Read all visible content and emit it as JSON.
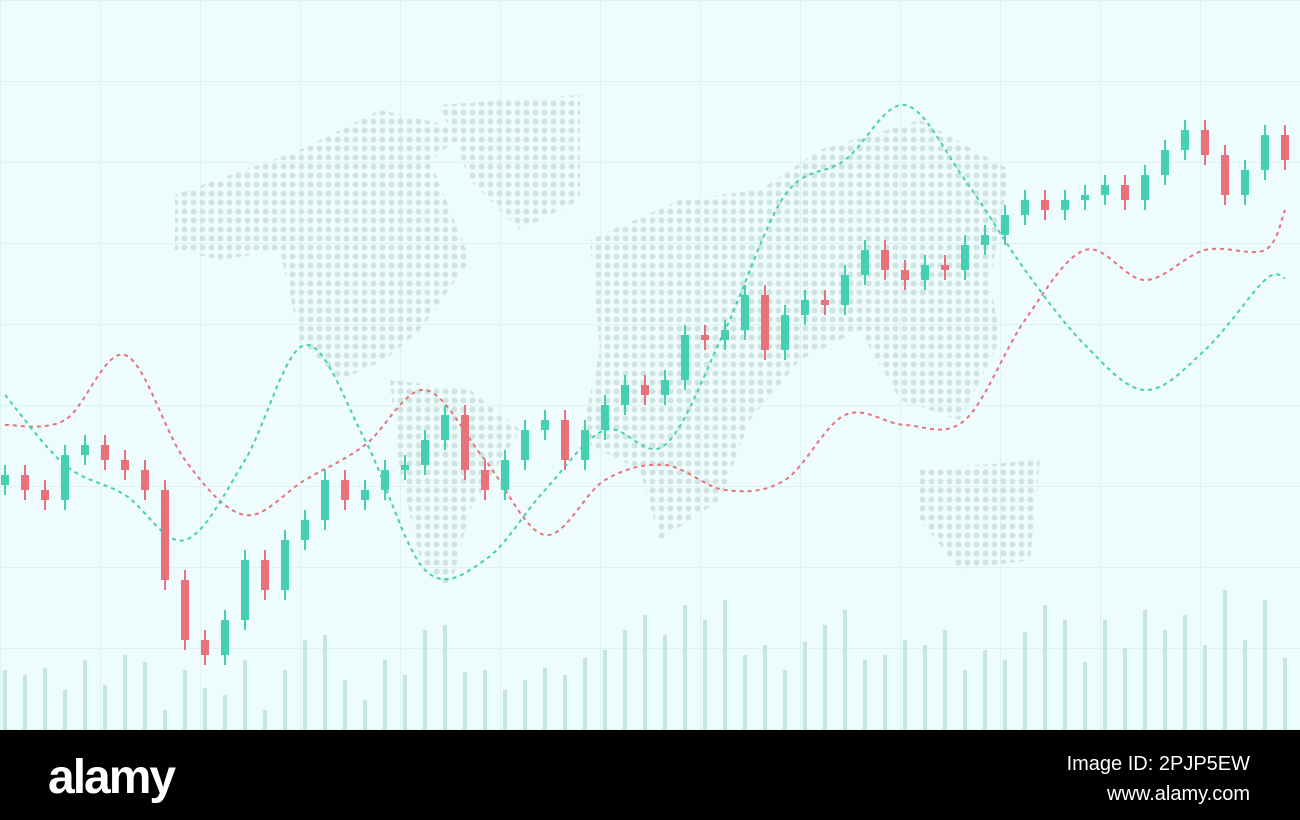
{
  "chart_data": {
    "type": "candlestick",
    "up_color": "#45d0b3",
    "down_color": "#e8727c",
    "volume_color": "#c4e6df",
    "ylim": [
      0,
      730
    ],
    "open": [
      245,
      255,
      240,
      230,
      275,
      285,
      270,
      260,
      240,
      150,
      90,
      75,
      110,
      170,
      140,
      190,
      210,
      250,
      230,
      240,
      260,
      265,
      290,
      315,
      260,
      240,
      270,
      300,
      310,
      270,
      300,
      325,
      345,
      335,
      350,
      395,
      390,
      400,
      435,
      380,
      415,
      430,
      425,
      455,
      480,
      460,
      450,
      465,
      460,
      485,
      495,
      515,
      530,
      520,
      530,
      535,
      545,
      530,
      555,
      580,
      600,
      575,
      535,
      560,
      595
    ],
    "high": [
      265,
      265,
      250,
      285,
      295,
      295,
      280,
      270,
      250,
      160,
      100,
      120,
      180,
      180,
      200,
      220,
      260,
      260,
      250,
      270,
      275,
      300,
      325,
      325,
      270,
      280,
      310,
      320,
      320,
      310,
      335,
      355,
      355,
      360,
      405,
      405,
      410,
      445,
      445,
      425,
      440,
      440,
      465,
      490,
      490,
      470,
      475,
      475,
      495,
      505,
      525,
      540,
      540,
      540,
      545,
      555,
      555,
      565,
      590,
      610,
      610,
      585,
      570,
      605,
      605
    ],
    "low": [
      235,
      230,
      220,
      220,
      265,
      260,
      250,
      230,
      140,
      80,
      65,
      65,
      100,
      130,
      130,
      180,
      200,
      220,
      220,
      230,
      250,
      255,
      280,
      250,
      230,
      230,
      260,
      290,
      260,
      260,
      290,
      315,
      325,
      325,
      340,
      380,
      380,
      390,
      370,
      370,
      405,
      415,
      415,
      445,
      450,
      440,
      440,
      450,
      450,
      475,
      485,
      505,
      510,
      510,
      520,
      525,
      520,
      520,
      545,
      570,
      565,
      525,
      525,
      550,
      560
    ],
    "close": [
      255,
      240,
      230,
      275,
      285,
      270,
      260,
      240,
      150,
      90,
      75,
      110,
      170,
      140,
      190,
      210,
      250,
      230,
      240,
      260,
      265,
      290,
      315,
      260,
      240,
      270,
      300,
      310,
      270,
      300,
      325,
      345,
      335,
      350,
      395,
      390,
      400,
      435,
      380,
      415,
      430,
      425,
      455,
      480,
      460,
      450,
      465,
      460,
      485,
      495,
      515,
      530,
      520,
      530,
      535,
      545,
      530,
      555,
      580,
      600,
      575,
      535,
      560,
      595,
      570
    ],
    "volume": [
      60,
      55,
      62,
      40,
      70,
      45,
      75,
      68,
      20,
      60,
      42,
      35,
      70,
      20,
      60,
      90,
      95,
      50,
      30,
      70,
      55,
      100,
      105,
      58,
      60,
      40,
      50,
      62,
      55,
      72,
      80,
      100,
      115,
      95,
      125,
      110,
      130,
      75,
      85,
      60,
      88,
      105,
      120,
      70,
      75,
      90,
      85,
      100,
      60,
      80,
      70,
      98,
      125,
      110,
      68,
      110,
      82,
      120,
      100,
      115,
      85,
      140,
      90,
      130,
      72
    ],
    "lines": [
      {
        "color": "#e8727c",
        "x": [
          0,
          3,
          6,
          9,
          12,
          15,
          18,
          21,
          24,
          27,
          30,
          33,
          36,
          39,
          42,
          45,
          48,
          51,
          54,
          57,
          60,
          63,
          64
        ],
        "values": [
          305,
          310,
          375,
          270,
          215,
          250,
          285,
          340,
          270,
          195,
          250,
          265,
          240,
          250,
          315,
          305,
          310,
          410,
          480,
          450,
          480,
          480,
          520
        ]
      },
      {
        "color": "#45d0b3",
        "x": [
          0,
          3,
          6,
          9,
          12,
          15,
          18,
          21,
          24,
          27,
          30,
          33,
          36,
          39,
          42,
          45,
          48,
          51,
          54,
          57,
          60,
          63,
          64
        ],
        "values": [
          335,
          265,
          235,
          190,
          270,
          385,
          290,
          160,
          170,
          240,
          300,
          285,
          400,
          535,
          570,
          625,
          550,
          460,
          385,
          340,
          380,
          450,
          452
        ]
      }
    ]
  },
  "footer": {
    "brand": "alamy",
    "image_id": "Image ID: 2PJP5EW",
    "url": "www.alamy.com"
  }
}
